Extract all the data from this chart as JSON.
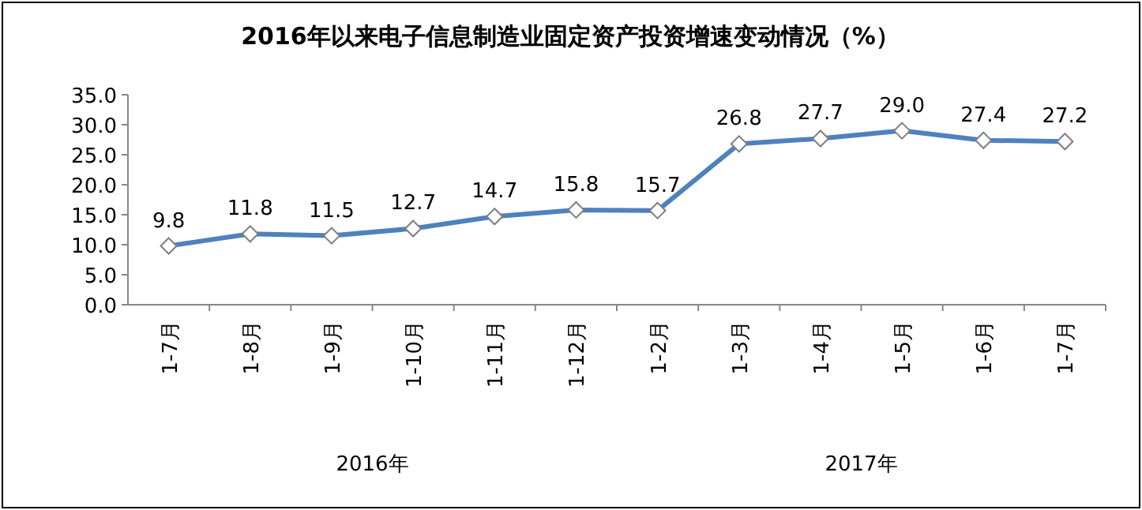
{
  "chart_data": {
    "type": "line",
    "title": "2016年以来电子信息制造业固定资产投资增速变动情况（%）",
    "categories": [
      "1-7月",
      "1-8月",
      "1-9月",
      "1-10月",
      "1-11月",
      "1-12月",
      "1-2月",
      "1-3月",
      "1-4月",
      "1-5月",
      "1-6月",
      "1-7月"
    ],
    "values": [
      9.8,
      11.8,
      11.5,
      12.7,
      14.7,
      15.8,
      15.7,
      26.8,
      27.7,
      29.0,
      27.4,
      27.2
    ],
    "value_labels": [
      "9.8",
      "11.8",
      "11.5",
      "12.7",
      "14.7",
      "15.8",
      "15.7",
      "26.8",
      "27.7",
      "29.0",
      "27.4",
      "27.2"
    ],
    "color": "#4f81bd",
    "marker": "diamond",
    "grid": false,
    "ylim": [
      0,
      35
    ],
    "yticks": [
      {
        "value": 0,
        "label": "0.0"
      },
      {
        "value": 5,
        "label": "5.0"
      },
      {
        "value": 10,
        "label": "10.0"
      },
      {
        "value": 15,
        "label": "15.0"
      },
      {
        "value": 20,
        "label": "20.0"
      },
      {
        "value": 25,
        "label": "25.0"
      },
      {
        "value": 30,
        "label": "30.0"
      },
      {
        "value": 35,
        "label": "35.0"
      }
    ],
    "annotations": [
      "2016年",
      "2017年"
    ]
  }
}
